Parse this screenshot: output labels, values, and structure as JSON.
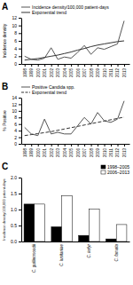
{
  "chart_data": [
    {
      "type": "line",
      "title": "A",
      "ylabel": "Incidence density",
      "x": [
        1998,
        1999,
        2000,
        2001,
        2002,
        2003,
        2004,
        2005,
        2006,
        2007,
        2008,
        2009,
        2010,
        2011,
        2012,
        2013
      ],
      "xlim": [
        1997.5,
        2013.8
      ],
      "xticks": [
        1998,
        1999,
        2000,
        2001,
        2002,
        2003,
        2004,
        2005,
        2006,
        2007,
        2008,
        2009,
        2010,
        2011,
        2012,
        2013
      ],
      "series": [
        {
          "name": "Incidence density/100,000 patient-days",
          "color": "#555555",
          "line_style": "solid",
          "values": [
            2.0,
            1.2,
            1.0,
            1.5,
            4.2,
            1.2,
            1.8,
            1.5,
            3.0,
            4.8,
            2.5,
            4.2,
            3.8,
            4.5,
            5.2,
            11.2
          ]
        },
        {
          "name": "Exponential trend",
          "color": "#333333",
          "line_style": "solid",
          "values": [
            1.0,
            1.2,
            1.4,
            1.7,
            2.0,
            2.3,
            2.7,
            3.1,
            3.6,
            4.0,
            4.5,
            4.9,
            5.2,
            5.5,
            5.8,
            6.0
          ]
        }
      ],
      "ylim": [
        0,
        12
      ],
      "yticks": [
        0,
        2,
        4,
        6,
        8,
        10,
        12
      ],
      "legend": "upper left"
    },
    {
      "type": "line",
      "title": "B",
      "ylabel": "% Positive",
      "x": [
        1998,
        1999,
        2000,
        2001,
        2002,
        2003,
        2004,
        2005,
        2006,
        2007,
        2008,
        2009,
        2010,
        2011,
        2012,
        2013
      ],
      "xlim": [
        1997.5,
        2013.8
      ],
      "xticks": [
        1998,
        1999,
        2000,
        2001,
        2002,
        2003,
        2004,
        2005,
        2006,
        2007,
        2008,
        2009,
        2010,
        2011,
        2012,
        2013
      ],
      "series": [
        {
          "name": "Positive Candida spp.",
          "color": "#555555",
          "line_style": "solid",
          "values": [
            5.0,
            3.0,
            2.5,
            7.5,
            3.0,
            3.5,
            3.0,
            3.0,
            5.5,
            8.0,
            6.0,
            9.5,
            7.0,
            6.5,
            7.5,
            13.0
          ]
        },
        {
          "name": "Exponential trend",
          "color": "#333333",
          "line_style": "dashed",
          "values": [
            2.5,
            2.8,
            3.1,
            3.4,
            3.7,
            4.1,
            4.5,
            4.9,
            5.3,
            5.7,
            6.1,
            6.5,
            6.9,
            7.3,
            7.7,
            8.1
          ]
        }
      ],
      "ylim": [
        0,
        14
      ],
      "yticks": [
        0,
        2,
        4,
        6,
        8,
        10,
        12,
        14
      ],
      "legend": "upper left"
    },
    {
      "type": "bar",
      "title": "C",
      "ylabel": "Incidence density/100,000 patient-days",
      "categories": [
        "C. guilliermondii",
        "C. lusitaniae",
        "C. kefyr",
        "C. famata"
      ],
      "series": [
        {
          "name": "1998–2005",
          "color": "#000000",
          "values": [
            1.17,
            0.46,
            0.19,
            0.08
          ]
        },
        {
          "name": "2006–2013",
          "color": "#ffffff",
          "values": [
            1.17,
            1.43,
            1.01,
            0.53
          ]
        }
      ],
      "ylim": [
        0,
        2.0
      ],
      "yticks": [
        {
          "value": 0.0,
          "label": "0.0"
        },
        0.5,
        {
          "value": 1.0,
          "label": "1.0"
        },
        1.5,
        {
          "value": 2.0,
          "label": "2.0"
        }
      ],
      "legend": "upper right"
    }
  ]
}
